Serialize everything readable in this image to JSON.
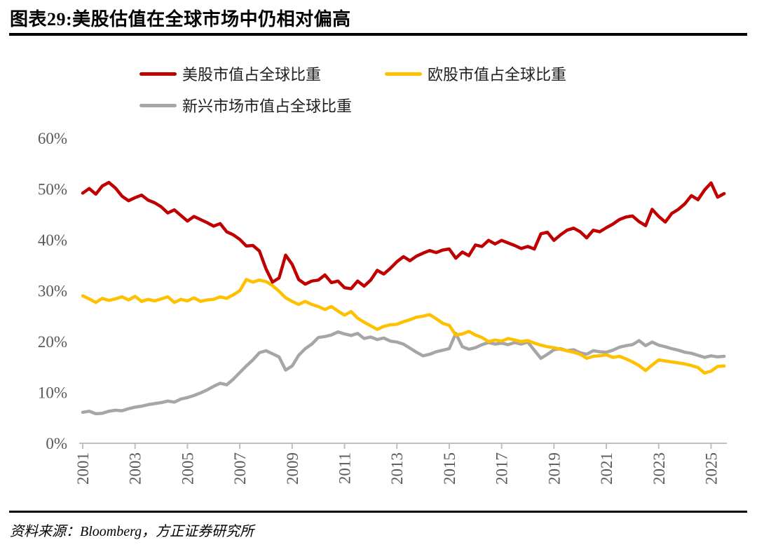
{
  "page": {
    "title": "图表29:美股估值在全球市场中仍相对偏高",
    "source_note": "资料来源：Bloomberg，方正证券研究所"
  },
  "chart_data": {
    "type": "line",
    "title": "图表29:美股估值在全球市场中仍相对偏高",
    "legend_position": "top",
    "grid": false,
    "background": "#FFFFFF",
    "axis_color": "#BFBFBF",
    "tick_label_color": "#595959",
    "xlim": [
      2000.92,
      2025.55
    ],
    "ylim": [
      0,
      60
    ],
    "y_ticks": [
      {
        "value": 0,
        "label": "0%"
      },
      {
        "value": 10,
        "label": "10%"
      },
      {
        "value": 20,
        "label": "20%"
      },
      {
        "value": 30,
        "label": "30%"
      },
      {
        "value": 40,
        "label": "40%"
      },
      {
        "value": 50,
        "label": "50%"
      },
      {
        "value": 60,
        "label": "60%"
      }
    ],
    "x_ticks": [
      {
        "value": 2001,
        "label": "2001"
      },
      {
        "value": 2003,
        "label": "2003"
      },
      {
        "value": 2005,
        "label": "2005"
      },
      {
        "value": 2007,
        "label": "2007"
      },
      {
        "value": 2009,
        "label": "2009"
      },
      {
        "value": 2011,
        "label": "2011"
      },
      {
        "value": 2013,
        "label": "2013"
      },
      {
        "value": 2015,
        "label": "2015"
      },
      {
        "value": 2017,
        "label": "2017"
      },
      {
        "value": 2019,
        "label": "2019"
      },
      {
        "value": 2021,
        "label": "2021"
      },
      {
        "value": 2023,
        "label": "2023"
      },
      {
        "value": 2025,
        "label": "2025"
      }
    ],
    "x": [
      2001,
      2001.25,
      2001.5,
      2001.75,
      2002,
      2002.25,
      2002.5,
      2002.75,
      2003,
      2003.25,
      2003.5,
      2003.75,
      2004,
      2004.25,
      2004.5,
      2004.75,
      2005,
      2005.25,
      2005.5,
      2005.75,
      2006,
      2006.25,
      2006.5,
      2006.75,
      2007,
      2007.25,
      2007.5,
      2007.75,
      2008,
      2008.25,
      2008.5,
      2008.75,
      2009,
      2009.25,
      2009.5,
      2009.75,
      2010,
      2010.25,
      2010.5,
      2010.75,
      2011,
      2011.25,
      2011.5,
      2011.75,
      2012,
      2012.25,
      2012.5,
      2012.75,
      2013,
      2013.25,
      2013.5,
      2013.75,
      2014,
      2014.25,
      2014.5,
      2014.75,
      2015,
      2015.25,
      2015.5,
      2015.75,
      2016,
      2016.25,
      2016.5,
      2016.75,
      2017,
      2017.25,
      2017.5,
      2017.75,
      2018,
      2018.25,
      2018.5,
      2018.75,
      2019,
      2019.25,
      2019.5,
      2019.75,
      2020,
      2020.25,
      2020.5,
      2020.75,
      2021,
      2021.25,
      2021.5,
      2021.75,
      2022,
      2022.25,
      2022.5,
      2022.75,
      2023,
      2023.25,
      2023.5,
      2023.75,
      2024,
      2024.25,
      2024.5,
      2024.75,
      2025,
      2025.25,
      2025.5
    ],
    "series": [
      {
        "key": "us",
        "name": "美股市值占全球比重",
        "color": "#C00000",
        "values": [
          49.2,
          50.1,
          49.0,
          50.6,
          51.3,
          50.2,
          48.6,
          47.7,
          48.3,
          48.8,
          47.8,
          47.3,
          46.5,
          45.3,
          45.9,
          44.8,
          43.7,
          44.6,
          44.0,
          43.4,
          42.7,
          43.2,
          41.6,
          41.0,
          40.1,
          38.8,
          38.9,
          37.8,
          34.3,
          31.7,
          32.5,
          37.0,
          35.2,
          32.2,
          31.3,
          31.9,
          32.1,
          33.1,
          31.6,
          31.9,
          30.6,
          30.4,
          31.9,
          30.9,
          32.1,
          34.0,
          33.3,
          34.4,
          35.7,
          36.7,
          35.9,
          36.8,
          37.4,
          37.9,
          37.5,
          38.0,
          38.2,
          36.4,
          37.6,
          36.9,
          39.0,
          38.7,
          39.9,
          39.2,
          39.9,
          39.4,
          38.9,
          38.3,
          38.7,
          38.2,
          41.2,
          41.5,
          39.9,
          41.0,
          41.9,
          42.3,
          41.6,
          40.4,
          41.9,
          41.6,
          42.4,
          43.1,
          44.0,
          44.5,
          44.7,
          43.6,
          42.8,
          46.0,
          44.6,
          43.5,
          45.2,
          46.0,
          47.1,
          48.7,
          47.9,
          49.8,
          51.2,
          48.4,
          49.1
        ]
      },
      {
        "key": "europe",
        "name": "欧股市值占全球比重",
        "color": "#FFC000",
        "values": [
          29.0,
          28.4,
          27.7,
          28.5,
          28.1,
          28.4,
          28.8,
          28.2,
          28.9,
          27.9,
          28.3,
          28.0,
          28.4,
          28.8,
          27.7,
          28.3,
          28.0,
          28.6,
          27.9,
          28.2,
          28.3,
          28.8,
          28.5,
          29.2,
          30.0,
          32.2,
          31.7,
          32.1,
          31.8,
          31.0,
          29.9,
          28.6,
          27.9,
          27.3,
          27.9,
          27.3,
          26.9,
          26.3,
          26.9,
          26.0,
          25.2,
          25.9,
          24.6,
          23.8,
          23.1,
          22.4,
          23.0,
          23.3,
          23.4,
          23.9,
          24.3,
          24.8,
          25.0,
          25.3,
          24.5,
          23.6,
          23.2,
          21.3,
          21.5,
          22.0,
          21.3,
          20.8,
          20.0,
          20.3,
          20.1,
          20.6,
          20.3,
          20.0,
          20.2,
          19.7,
          19.3,
          19.0,
          18.8,
          18.5,
          18.2,
          17.9,
          17.5,
          16.7,
          17.1,
          17.2,
          17.4,
          16.9,
          17.1,
          16.6,
          16.0,
          15.3,
          14.3,
          15.4,
          16.4,
          16.2,
          16.0,
          15.8,
          15.6,
          15.3,
          14.9,
          13.8,
          14.2,
          15.1,
          15.2
        ]
      },
      {
        "key": "em",
        "name": "新兴市场市值占全球比重",
        "color": "#A6A6A6",
        "values": [
          6.1,
          6.3,
          5.8,
          5.9,
          6.3,
          6.5,
          6.4,
          6.8,
          7.1,
          7.3,
          7.6,
          7.8,
          8.0,
          8.3,
          8.1,
          8.7,
          9.0,
          9.4,
          9.9,
          10.5,
          11.2,
          11.8,
          11.5,
          12.6,
          13.9,
          15.2,
          16.4,
          17.8,
          18.2,
          17.6,
          17.0,
          14.4,
          15.2,
          17.3,
          18.6,
          19.5,
          20.8,
          21.0,
          21.3,
          21.9,
          21.5,
          21.2,
          21.6,
          20.6,
          20.9,
          20.4,
          20.7,
          20.1,
          19.9,
          19.5,
          18.7,
          17.9,
          17.2,
          17.5,
          18.0,
          18.3,
          18.6,
          21.6,
          19.0,
          18.5,
          18.8,
          19.4,
          19.8,
          19.5,
          19.7,
          19.4,
          19.8,
          19.5,
          19.9,
          18.3,
          16.7,
          17.5,
          18.4,
          18.6,
          18.2,
          18.4,
          17.8,
          17.5,
          18.2,
          18.0,
          17.9,
          18.3,
          18.9,
          19.2,
          19.4,
          20.2,
          19.2,
          19.9,
          19.3,
          19.0,
          18.6,
          18.3,
          17.9,
          17.7,
          17.3,
          16.9,
          17.2,
          17.0,
          17.1
        ]
      }
    ]
  }
}
